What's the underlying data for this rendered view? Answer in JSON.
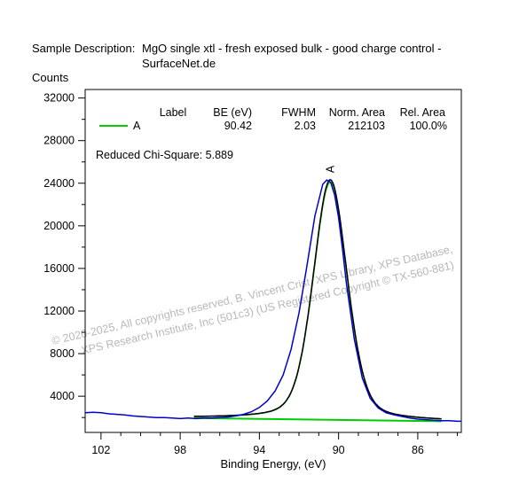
{
  "header": {
    "sample_label": "Sample Description:",
    "sample_value_line1": "MgO single xtl - fresh exposed bulk - good charge control -",
    "sample_value_line2": "SurfaceNet.de"
  },
  "watermark": {
    "line1": "© 2020-2025, All copyrights reserved, B. Vincent Crist, XPS Library, XPS Database,",
    "line2": "XPS Research Institute, Inc (501c3) (US Registered Copyright © TX-560-881)"
  },
  "chart_data": {
    "type": "line",
    "ylabel": "Counts",
    "xlabel": "Binding Energy, (eV)",
    "xlim": [
      102.8,
      83.8
    ],
    "ylim": [
      600,
      32800
    ],
    "x_reversed": true,
    "xticks": [
      102,
      98,
      94,
      90,
      86
    ],
    "yticks": [
      4000,
      8000,
      12000,
      16000,
      20000,
      24000,
      28000,
      32000
    ],
    "legend": {
      "headers": [
        "Label",
        "BE (eV)",
        "FWHM",
        "Norm. Area",
        "Rel. Area"
      ],
      "rows": [
        {
          "label": "A",
          "be": "90.42",
          "fwhm": "2.03",
          "norm_area": "212103",
          "rel_area": "100.0%",
          "color": "#00cc00"
        }
      ]
    },
    "chi_square": "Reduced Chi-Square: 5.889",
    "peak_label": "A",
    "peak": {
      "center": 90.42,
      "height": 22300,
      "fwhm": 2.03
    },
    "background": {
      "x": [
        97.3,
        84.8
      ],
      "y": [
        1950,
        1650
      ]
    },
    "series": [
      {
        "role": "measured",
        "color": "#0000cc",
        "x": [
          102.8,
          102.4,
          102.0,
          101.6,
          101.2,
          100.8,
          100.4,
          100.0,
          99.6,
          99.2,
          98.8,
          98.4,
          98.0,
          97.6,
          97.2,
          96.8,
          96.4,
          96.0,
          95.6,
          95.2,
          94.8,
          94.4,
          94.0,
          93.6,
          93.2,
          92.8,
          92.4,
          92.0,
          91.6,
          91.2,
          90.8,
          90.6,
          90.4,
          90.2,
          90.0,
          89.8,
          89.6,
          89.2,
          88.8,
          88.4,
          88.0,
          87.6,
          87.2,
          86.8,
          86.4,
          86.0,
          85.6,
          85.2,
          84.8,
          84.4,
          84.0,
          83.8
        ],
        "y": [
          2450,
          2500,
          2450,
          2350,
          2300,
          2250,
          2150,
          2100,
          2050,
          2000,
          2000,
          1950,
          1900,
          1950,
          1900,
          1950,
          1950,
          2000,
          2050,
          2150,
          2300,
          2550,
          2950,
          3550,
          4500,
          6000,
          8400,
          11800,
          16200,
          20900,
          23900,
          24300,
          24100,
          22900,
          20800,
          17800,
          14500,
          9300,
          5700,
          3800,
          2900,
          2450,
          2250,
          2100,
          1950,
          1850,
          1800,
          1750,
          1700,
          1700,
          1650,
          1650
        ]
      }
    ]
  }
}
